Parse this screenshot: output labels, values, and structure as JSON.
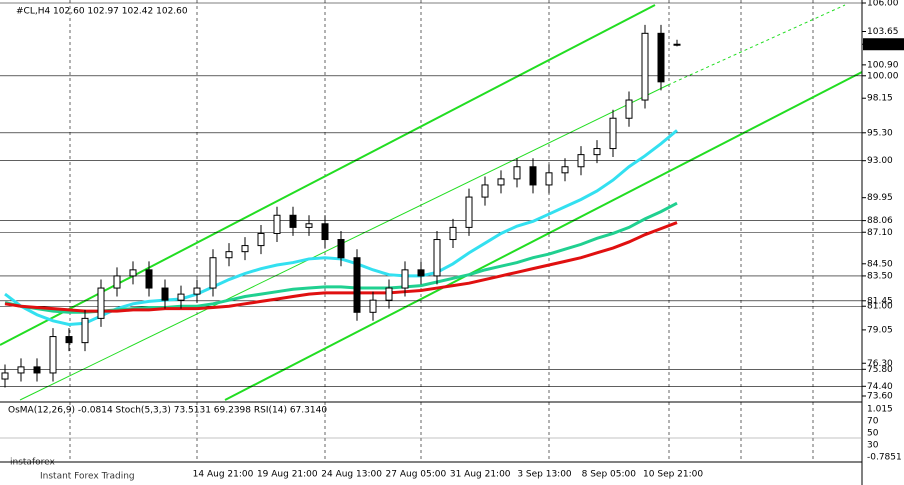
{
  "chart_data": {
    "type": "candlestick",
    "title": "#CL,H4 102.60 102.97 102.42 102.60",
    "categories": [
      null,
      null,
      null,
      null,
      null,
      null,
      null,
      null,
      null,
      null,
      null,
      null,
      null,
      null,
      null,
      null,
      null,
      null,
      null,
      null,
      null,
      null,
      null,
      null,
      null,
      null,
      null,
      null,
      null,
      null,
      null,
      null,
      null,
      null,
      null,
      null,
      null,
      null,
      null,
      null,
      null,
      null,
      null
    ],
    "open": [
      75,
      75.5,
      76,
      75.5,
      78.5,
      78,
      80,
      82.5,
      83.5,
      84,
      82.5,
      81.5,
      82,
      82.5,
      85,
      85.5,
      86,
      87,
      88.5,
      87.5,
      87.8,
      86.5,
      85,
      80.5,
      81.5,
      82.5,
      84,
      83.5,
      86.5,
      87.5,
      90,
      91,
      91.5,
      92.5,
      91,
      92,
      92.5,
      93.5,
      94,
      96.5,
      98,
      103.5,
      102.6
    ],
    "high": [
      76.2,
      76.7,
      76.7,
      79.2,
      79.2,
      80.7,
      83.2,
      84.2,
      84.7,
      84.7,
      83.2,
      82.7,
      83.2,
      85.7,
      86.2,
      86.7,
      87.7,
      89.2,
      89.2,
      88.5,
      88.5,
      87.2,
      85.7,
      82.2,
      83.2,
      84.7,
      84.7,
      87.2,
      88.2,
      90.7,
      91.7,
      92.2,
      93.2,
      93.2,
      92.7,
      93.2,
      94.2,
      94.7,
      97.2,
      98.7,
      104.2,
      104.2,
      102.97
    ],
    "low": [
      74.3,
      74.8,
      74.8,
      74.8,
      77.3,
      77.3,
      79.3,
      81.8,
      82.8,
      81.8,
      80.8,
      80.8,
      81.3,
      81.8,
      84.3,
      84.8,
      85.3,
      86.3,
      86.8,
      86.8,
      85.8,
      84.3,
      79.8,
      79.8,
      80.8,
      81.8,
      82.8,
      82.8,
      85.8,
      86.8,
      89.3,
      90.3,
      90.8,
      90.3,
      90.3,
      91.3,
      91.8,
      92.8,
      93.3,
      95.8,
      97.3,
      98.8,
      102.42
    ],
    "close": [
      75.5,
      76,
      75.5,
      78.5,
      78,
      80,
      82.5,
      83.5,
      84,
      82.5,
      81.5,
      82,
      82.5,
      85,
      85.5,
      86,
      87,
      88.5,
      87.5,
      87.8,
      86.5,
      85,
      80.5,
      81.5,
      82.5,
      84,
      83.5,
      86.5,
      87.5,
      90,
      91,
      91.5,
      92.5,
      91,
      92,
      92.5,
      93.5,
      94,
      96.5,
      98,
      103.5,
      99.5,
      102.6
    ],
    "color": "#000000",
    "series": [
      {
        "color": "#33e0f0",
        "values": [
          82,
          81,
          80.3,
          79.8,
          79.5,
          79.6,
          80.2,
          80.8,
          81.2,
          81.4,
          81.5,
          81.6,
          82,
          82.6,
          83.2,
          83.7,
          84.1,
          84.4,
          84.6,
          84.9,
          85,
          84.9,
          84.5,
          84,
          83.6,
          83.5,
          83.5,
          83.8,
          84.5,
          85.4,
          86.2,
          87,
          87.6,
          88,
          88.6,
          89.2,
          89.8,
          90.5,
          91.4,
          92.5,
          93.4,
          94.4,
          95.5
        ]
      },
      {
        "color": "#20d090",
        "values": [
          81.3,
          81,
          80.8,
          80.6,
          80.5,
          80.5,
          80.6,
          80.7,
          80.8,
          80.9,
          80.9,
          81,
          81,
          81.2,
          81.5,
          81.8,
          82,
          82.2,
          82.4,
          82.5,
          82.6,
          82.6,
          82.5,
          82.5,
          82.5,
          82.6,
          82.7,
          83,
          83.3,
          83.6,
          84,
          84.3,
          84.6,
          85,
          85.3,
          85.7,
          86.1,
          86.6,
          87,
          87.5,
          88.2,
          88.8,
          89.5
        ]
      },
      {
        "color": "#e01010",
        "values": [
          81.2,
          81,
          80.9,
          80.8,
          80.7,
          80.6,
          80.6,
          80.6,
          80.7,
          80.7,
          80.8,
          80.8,
          80.8,
          80.9,
          81,
          81.2,
          81.4,
          81.6,
          81.8,
          82,
          82.1,
          82.1,
          82.1,
          82.1,
          82.1,
          82.2,
          82.3,
          82.5,
          82.7,
          82.9,
          83.2,
          83.5,
          83.8,
          84.1,
          84.4,
          84.7,
          85,
          85.4,
          85.8,
          86.3,
          86.9,
          87.4,
          87.9
        ]
      }
    ],
    "ylim": [
      73.6,
      106
    ],
    "yticks": [
      {
        "value": 106,
        "label": "106.00"
      },
      {
        "value": 103.65,
        "label": "103.65"
      },
      {
        "value": 102.6,
        "label": "102.60"
      },
      {
        "value": 100.9,
        "label": "100.90"
      },
      {
        "value": 100,
        "label": "100.00"
      },
      {
        "value": 98.15,
        "label": "98.15"
      },
      {
        "value": 95.3,
        "label": "95.30"
      },
      {
        "value": 93,
        "label": "93.00"
      },
      {
        "value": 89.95,
        "label": "89.95"
      },
      {
        "value": 88.06,
        "label": "88.06"
      },
      {
        "value": 87.1,
        "label": "87.10"
      },
      {
        "value": 84.5,
        "label": "84.50"
      },
      {
        "value": 83.5,
        "label": "83.50"
      },
      {
        "value": 81.45,
        "label": "81.45"
      },
      {
        "value": 81,
        "label": "81.00"
      },
      {
        "value": 79.05,
        "label": "79.05"
      },
      {
        "value": 76.3,
        "label": "76.30"
      },
      {
        "value": 75.8,
        "label": "75.80"
      },
      {
        "value": 74.4,
        "label": "74.40"
      },
      {
        "value": 73.6,
        "label": "73.60"
      }
    ],
    "levels": [
      106,
      100,
      95.3,
      93,
      88.06,
      87.1,
      83.5,
      81.45,
      81,
      75.8,
      74.4
    ],
    "x_labels": [
      "14 Aug 21:00",
      "19 Aug 21:00",
      "24 Aug 13:00",
      "27 Aug 05:00",
      "31 Aug 21:00",
      "3 Sep 13:00",
      "8 Sep 05:00",
      "10 Sep 21:00"
    ],
    "oscillator_title": "OsMA(12,26,9) -0.0814 Stoch(5,3,3) 73.5131 69.2398 RSI(14) 67.3140",
    "oscillator_labels": [
      "1.015",
      "70",
      "50",
      "30",
      "-0.7851"
    ],
    "watermark": "instaforex",
    "watermark_sub": "Instant Forex Trading"
  }
}
